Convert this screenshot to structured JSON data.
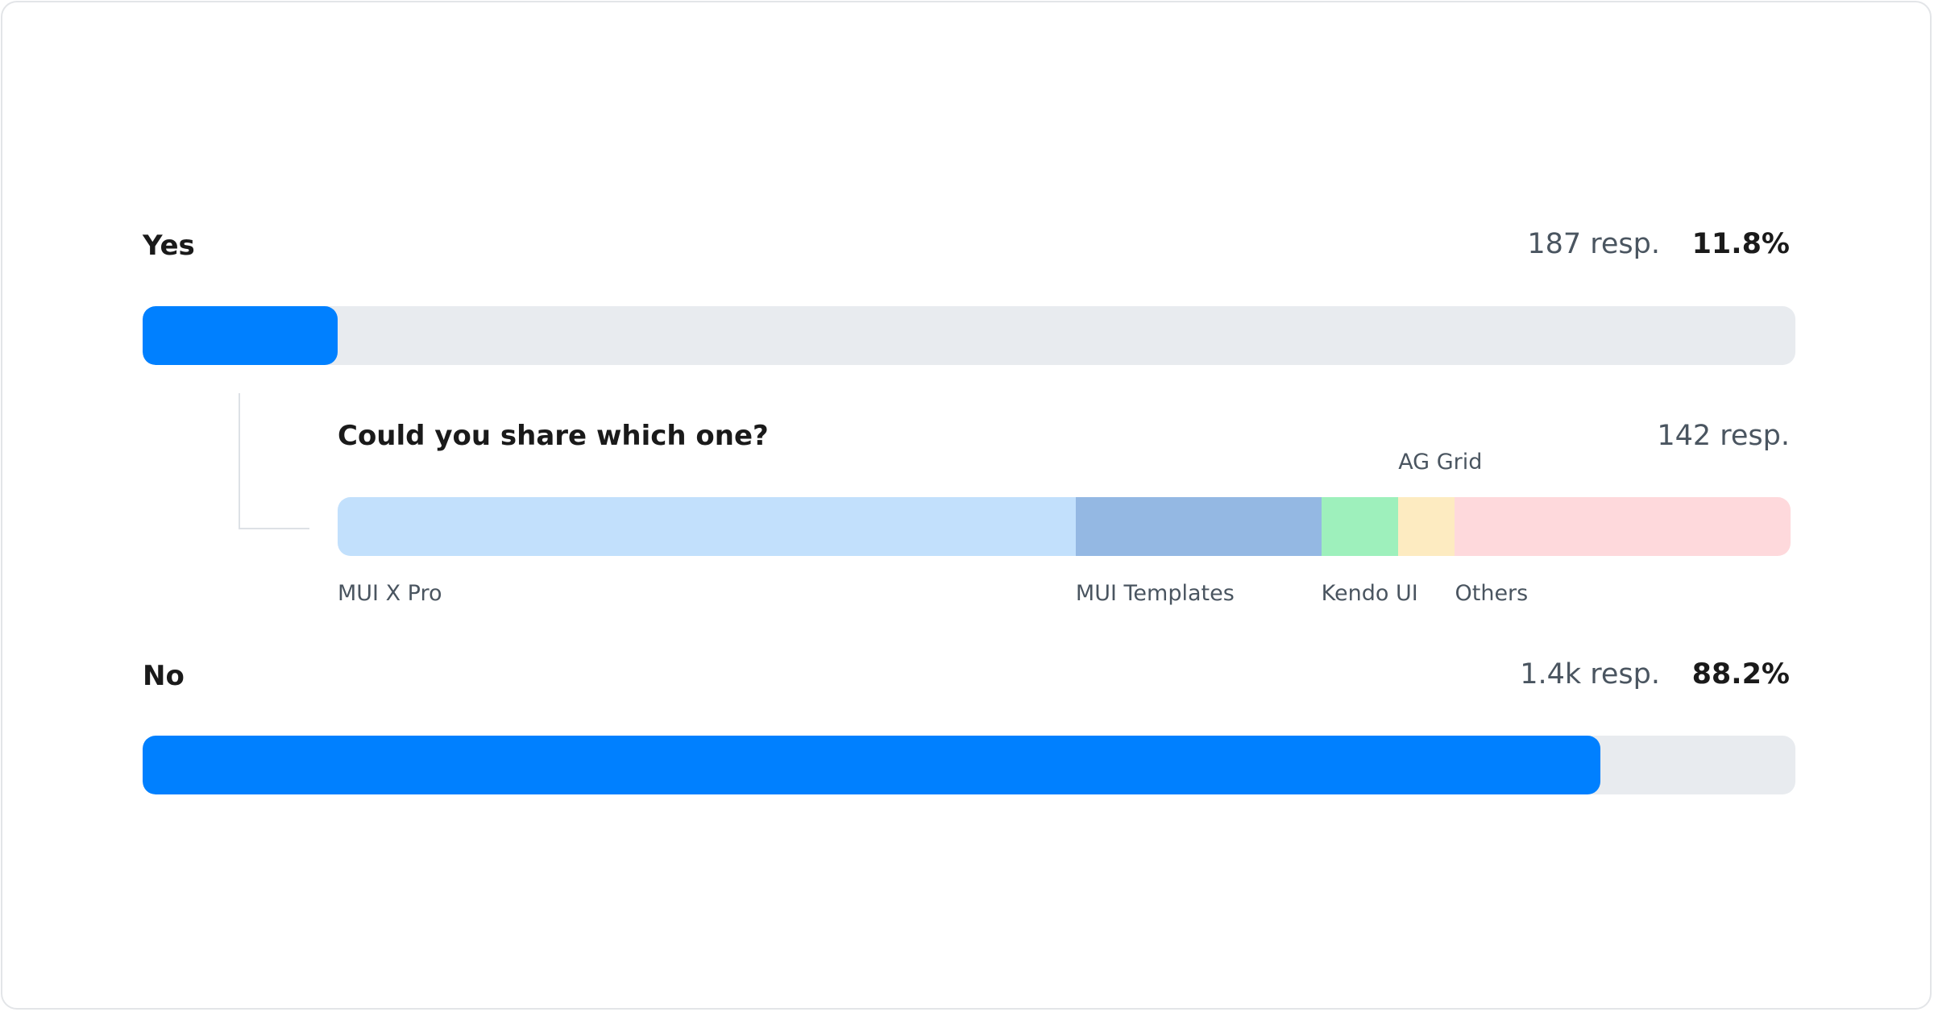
{
  "chart_data": {
    "type": "bar",
    "orientation": "horizontal",
    "options": [
      {
        "label": "Yes",
        "responses": "187 resp.",
        "percent_label": "11.8%",
        "percent": 11.8
      },
      {
        "label": "No",
        "responses": "1.4k resp.",
        "percent_label": "88.2%",
        "percent": 88.2
      }
    ],
    "followup": {
      "question": "Could you share which one?",
      "responses": "142 resp.",
      "type": "stacked-bar",
      "segments": [
        {
          "label": "MUI X Pro",
          "percent": 50.8,
          "color": "#c2e0fc"
        },
        {
          "label": "MUI Templates",
          "percent": 16.9,
          "color": "#94b8e3"
        },
        {
          "label": "Kendo UI",
          "percent": 5.3,
          "color": "#9ef0bc"
        },
        {
          "label": "AG Grid",
          "percent": 3.9,
          "color": "#fdebc1"
        },
        {
          "label": "Others",
          "percent": 23.1,
          "color": "#fed9dc"
        }
      ]
    },
    "colors": {
      "fill": "#0080ff",
      "track": "#e8ebef"
    }
  }
}
